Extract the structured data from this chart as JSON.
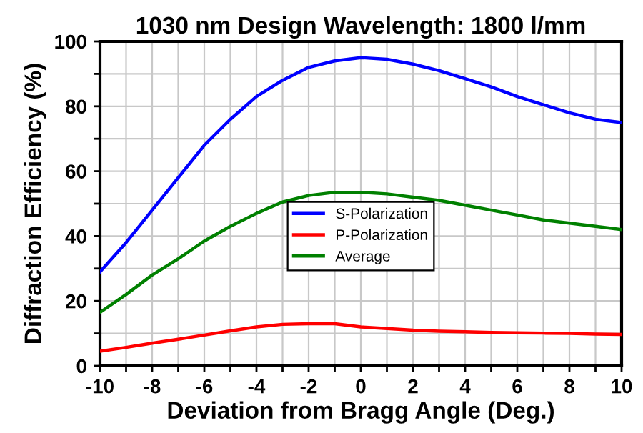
{
  "chart_data": {
    "type": "line",
    "title": "1030 nm Design Wavelength: 1800 l/mm",
    "xlabel": "Deviation from Bragg Angle (Deg.)",
    "ylabel": "Diffraction Efficiency (%)",
    "x": [
      -10,
      -9,
      -8,
      -7,
      -6,
      -5,
      -4,
      -3,
      -2,
      -1,
      0,
      1,
      2,
      3,
      4,
      5,
      6,
      7,
      8,
      9,
      10
    ],
    "series": [
      {
        "name": "S-Polarization",
        "color": "#0000ff",
        "values": [
          29,
          38,
          48,
          58,
          68,
          76,
          83,
          88,
          92,
          94,
          95,
          94.5,
          93,
          91,
          88.5,
          86,
          83,
          80.5,
          78,
          76,
          75
        ]
      },
      {
        "name": "P-Polarization",
        "color": "#ff0000",
        "values": [
          4.5,
          5.7,
          7,
          8.2,
          9.5,
          10.8,
          12,
          12.8,
          13,
          13,
          12,
          11.5,
          11,
          10.7,
          10.5,
          10.3,
          10.2,
          10.1,
          10,
          9.8,
          9.7
        ]
      },
      {
        "name": "Average",
        "color": "#008000",
        "values": [
          16.5,
          22,
          28,
          33,
          38.5,
          43,
          47,
          50.5,
          52.5,
          53.5,
          53.5,
          53,
          52,
          51,
          49.5,
          48,
          46.5,
          45,
          44,
          43,
          42
        ]
      }
    ],
    "xlim": [
      -10,
      10
    ],
    "ylim": [
      0,
      100
    ],
    "xticks": [
      -10,
      {
        "value": -9,
        "label": null
      },
      -8,
      {
        "value": -7,
        "label": null
      },
      -6,
      {
        "value": -5,
        "label": null
      },
      -4,
      {
        "value": -3,
        "label": null
      },
      -2,
      {
        "value": -1,
        "label": null
      },
      0,
      {
        "value": 1,
        "label": null
      },
      2,
      {
        "value": 3,
        "label": null
      },
      4,
      {
        "value": 5,
        "label": null
      },
      6,
      {
        "value": 7,
        "label": null
      },
      8,
      {
        "value": 9,
        "label": null
      },
      10
    ],
    "yticks": [
      0,
      {
        "value": 10,
        "label": null
      },
      20,
      {
        "value": 30,
        "label": null
      },
      40,
      {
        "value": 50,
        "label": null
      },
      60,
      {
        "value": 70,
        "label": null
      },
      80,
      {
        "value": 90,
        "label": null
      },
      100
    ],
    "grid": true,
    "legend": "center",
    "marker": "none",
    "line_style": "solid"
  }
}
